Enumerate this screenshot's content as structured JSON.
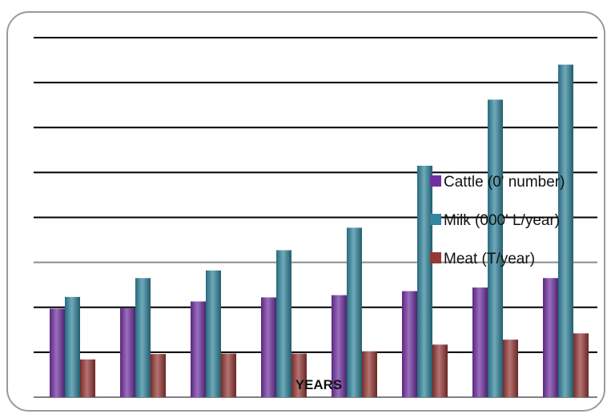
{
  "chart_data": {
    "type": "bar",
    "title": "",
    "xlabel": "YEARS",
    "ylabel": "",
    "categories": [
      "",
      "",
      "",
      "",
      "",
      "",
      "",
      ""
    ],
    "ylim": [
      0,
      8
    ],
    "grid": true,
    "legend_position": "right",
    "series": [
      {
        "name": "Cattle (0' number)",
        "color": "#7030A0",
        "values": [
          1.97,
          1.98,
          2.13,
          2.22,
          2.27,
          2.36,
          2.44,
          2.65
        ]
      },
      {
        "name": "Milk (000' L/year)",
        "color": "#31859C",
        "values": [
          2.23,
          2.65,
          2.82,
          3.27,
          3.77,
          5.15,
          6.62,
          7.4
        ]
      },
      {
        "name": "Meat (T/year)",
        "color": "#953735",
        "values": [
          0.84,
          0.96,
          0.97,
          0.97,
          1.02,
          1.17,
          1.28,
          1.42
        ]
      }
    ]
  }
}
